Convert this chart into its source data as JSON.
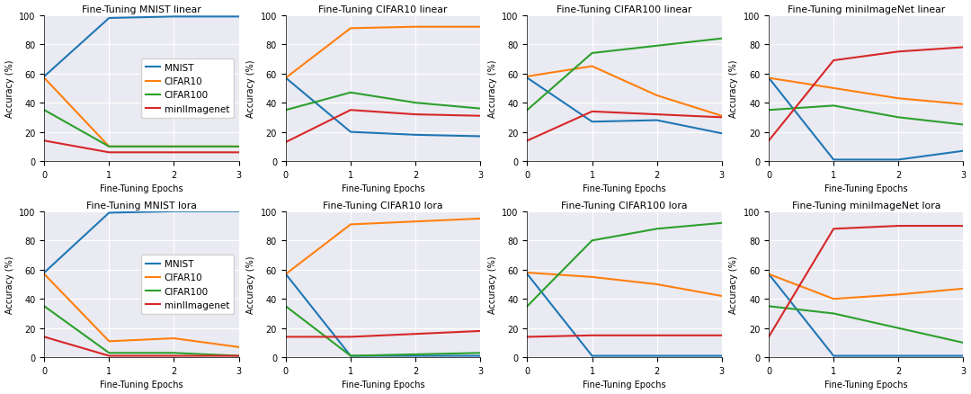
{
  "titles": [
    [
      "Fine-Tuning MNIST linear",
      "Fine-Tuning CIFAR10 linear",
      "Fine-Tuning CIFAR100 linear",
      "Fine-Tuning miniImageNet linear"
    ],
    [
      "Fine-Tuning MNIST lora",
      "Fine-Tuning CIFAR10 lora",
      "Fine-Tuning CIFAR100 lora",
      "Fine-Tuning miniImageNet lora"
    ]
  ],
  "xlabel": "Fine-Tuning Epochs",
  "ylabel": "Accuracy (%)",
  "x": [
    0,
    1,
    2,
    3
  ],
  "colors": {
    "MNIST": "#1f77b4",
    "CIFAR10": "#ff7f0e",
    "CIFAR100": "#2ca02c",
    "miniImagenet": "#d62728"
  },
  "legend_labels": [
    "MNIST",
    "CIFAR10",
    "CIFAR100",
    "minlImagenet"
  ],
  "series": {
    "linear": {
      "MNIST": {
        "MNIST": [
          58,
          98,
          99,
          99
        ],
        "CIFAR10": [
          57,
          10,
          10,
          10
        ],
        "CIFAR100": [
          35,
          10,
          10,
          10
        ],
        "miniImagenet": [
          14,
          6,
          6,
          6
        ]
      },
      "CIFAR10": {
        "MNIST": [
          57,
          20,
          18,
          17
        ],
        "CIFAR10": [
          57,
          91,
          92,
          92
        ],
        "CIFAR100": [
          35,
          47,
          40,
          36
        ],
        "miniImagenet": [
          13,
          35,
          32,
          31
        ]
      },
      "CIFAR100": {
        "MNIST": [
          57,
          27,
          28,
          19
        ],
        "CIFAR10": [
          58,
          65,
          45,
          31
        ],
        "CIFAR100": [
          35,
          74,
          79,
          84
        ],
        "miniImagenet": [
          14,
          34,
          32,
          30
        ]
      },
      "miniImageNet": {
        "MNIST": [
          57,
          1,
          1,
          7
        ],
        "CIFAR10": [
          57,
          50,
          43,
          39
        ],
        "CIFAR100": [
          35,
          38,
          30,
          25
        ],
        "miniImagenet": [
          14,
          69,
          75,
          78
        ]
      }
    },
    "lora": {
      "MNIST": {
        "MNIST": [
          58,
          99,
          100,
          100
        ],
        "CIFAR10": [
          57,
          11,
          13,
          7
        ],
        "CIFAR100": [
          35,
          3,
          3,
          1
        ],
        "miniImagenet": [
          14,
          1,
          1,
          1
        ]
      },
      "CIFAR10": {
        "MNIST": [
          57,
          1,
          1,
          1
        ],
        "CIFAR10": [
          57,
          91,
          93,
          95
        ],
        "CIFAR100": [
          35,
          1,
          2,
          3
        ],
        "miniImagenet": [
          14,
          14,
          16,
          18
        ]
      },
      "CIFAR100": {
        "MNIST": [
          57,
          1,
          1,
          1
        ],
        "CIFAR10": [
          58,
          55,
          50,
          42
        ],
        "CIFAR100": [
          35,
          80,
          88,
          92
        ],
        "miniImagenet": [
          14,
          15,
          15,
          15
        ]
      },
      "miniImageNet": {
        "MNIST": [
          57,
          1,
          1,
          1
        ],
        "CIFAR10": [
          57,
          40,
          43,
          47
        ],
        "CIFAR100": [
          35,
          30,
          20,
          10
        ],
        "miniImagenet": [
          14,
          88,
          90,
          90
        ]
      }
    }
  },
  "background_color": "#eaeaf2",
  "ylim": [
    0,
    100
  ],
  "xlim": [
    0,
    3
  ]
}
